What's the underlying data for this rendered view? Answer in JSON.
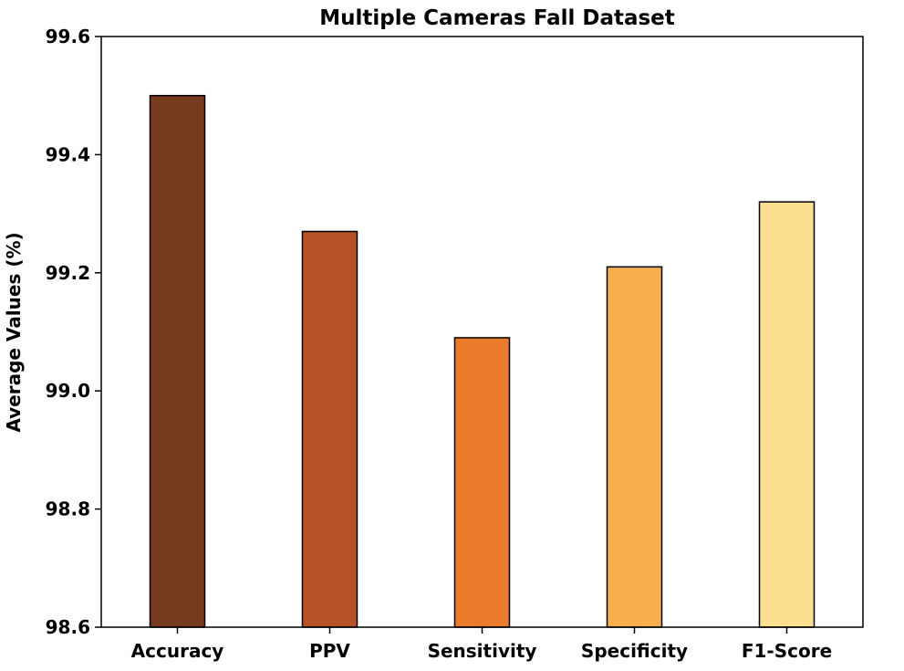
{
  "chart_data": {
    "type": "bar",
    "title": "Multiple Cameras Fall Dataset",
    "xlabel": "",
    "ylabel": "Average Values (%)",
    "ylim": [
      98.6,
      99.6
    ],
    "yticks": [
      "98.6",
      "98.8",
      "99.0",
      "99.2",
      "99.4",
      "99.6"
    ],
    "categories": [
      "Accuracy",
      "PPV",
      "Sensitivity",
      "Specificity",
      "F1-Score"
    ],
    "values": [
      99.5,
      99.27,
      99.09,
      99.21,
      99.32
    ],
    "colors": [
      "#763a1e",
      "#b65226",
      "#e97b2b",
      "#f7ae4e",
      "#fbdf8e"
    ],
    "grid": false,
    "legend": "none"
  }
}
